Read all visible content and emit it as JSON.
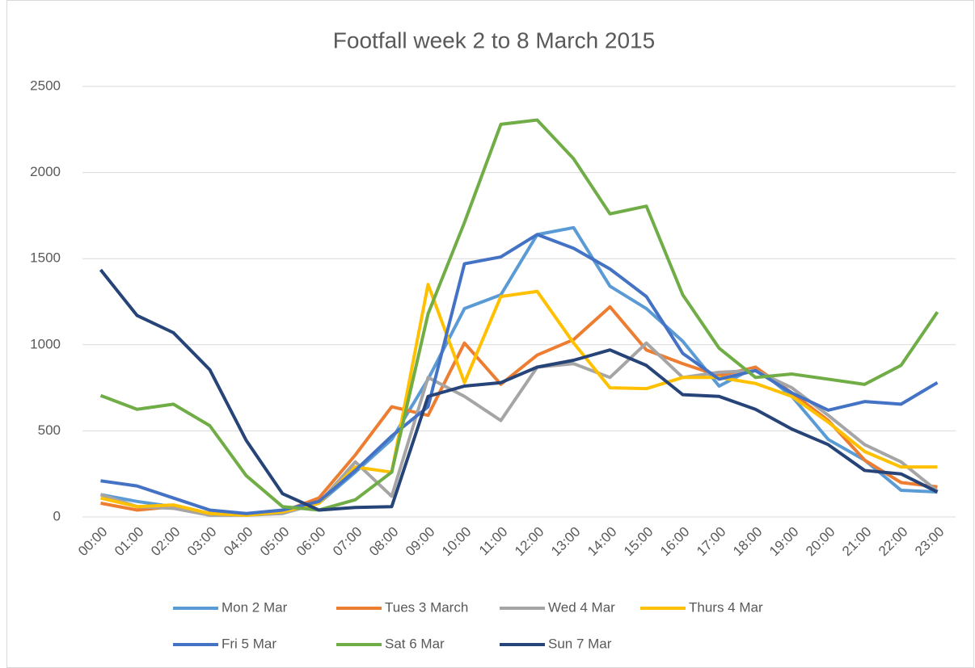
{
  "chart_data": {
    "type": "line",
    "title": "Footfall week 2 to 8 March 2015",
    "categories": [
      "00:00",
      "01:00",
      "02:00",
      "03:00",
      "04:00",
      "05:00",
      "06:00",
      "07:00",
      "08:00",
      "09:00",
      "10:00",
      "11:00",
      "12:00",
      "13:00",
      "14:00",
      "15:00",
      "16:00",
      "17:00",
      "18:00",
      "19:00",
      "20:00",
      "21:00",
      "22:00",
      "23:00"
    ],
    "series": [
      {
        "name": "Mon 2 Mar",
        "color": "#5b9bd5",
        "values": [
          130,
          90,
          60,
          20,
          15,
          30,
          80,
          260,
          450,
          800,
          1210,
          1290,
          1640,
          1680,
          1340,
          1210,
          1020,
          760,
          870,
          700,
          450,
          330,
          155,
          145
        ]
      },
      {
        "name": "Tues 3 March",
        "color": "#ed7d31",
        "values": [
          80,
          40,
          60,
          20,
          15,
          30,
          110,
          360,
          640,
          590,
          1010,
          770,
          940,
          1030,
          1220,
          970,
          890,
          820,
          870,
          720,
          560,
          330,
          200,
          175
        ]
      },
      {
        "name": "Wed 4 Mar",
        "color": "#a5a5a5",
        "values": [
          130,
          60,
          50,
          10,
          10,
          20,
          80,
          320,
          120,
          810,
          700,
          560,
          870,
          890,
          810,
          1010,
          810,
          840,
          850,
          750,
          590,
          420,
          320,
          150
        ]
      },
      {
        "name": "Thurs 4 Mar",
        "color": "#ffc000",
        "values": [
          110,
          60,
          70,
          20,
          10,
          30,
          80,
          290,
          260,
          1350,
          780,
          1280,
          1310,
          1010,
          750,
          745,
          810,
          810,
          775,
          700,
          550,
          380,
          290,
          290
        ]
      },
      {
        "name": "Fri 5 Mar",
        "color": "#4472c4",
        "values": [
          210,
          180,
          110,
          40,
          20,
          40,
          90,
          270,
          470,
          640,
          1470,
          1510,
          1640,
          1560,
          1440,
          1280,
          950,
          800,
          850,
          720,
          620,
          670,
          655,
          780
        ]
      },
      {
        "name": "Sat 6 Mar",
        "color": "#70ad47",
        "values": [
          705,
          625,
          655,
          530,
          240,
          60,
          40,
          100,
          260,
          1180,
          1710,
          2280,
          2305,
          2080,
          1760,
          1805,
          1290,
          980,
          810,
          830,
          800,
          770,
          880,
          1190
        ]
      },
      {
        "name": "Sun 7 Mar",
        "color": "#264478",
        "values": [
          1435,
          1170,
          1070,
          855,
          445,
          135,
          40,
          55,
          60,
          700,
          760,
          780,
          870,
          910,
          970,
          880,
          710,
          700,
          625,
          510,
          420,
          270,
          250,
          145
        ]
      }
    ],
    "ylim": [
      0,
      2500
    ],
    "yticks": [
      0,
      500,
      1000,
      1500,
      2000,
      2500
    ],
    "grid": true,
    "legend": "bottom"
  }
}
